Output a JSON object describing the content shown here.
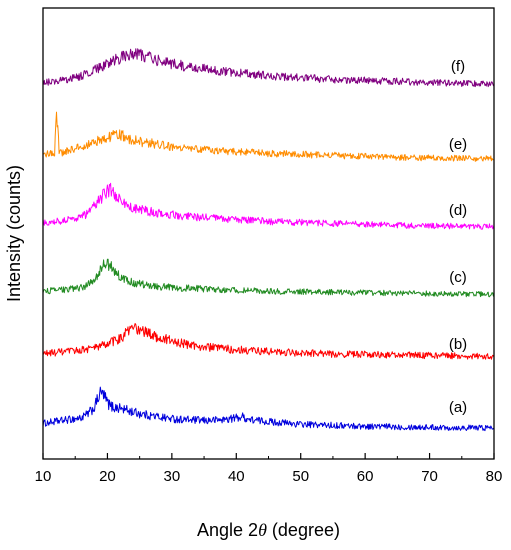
{
  "chart_data": {
    "type": "line",
    "xlabel_prefix": "Angle 2",
    "xlabel_symbol": "θ",
    "xlabel_suffix": " (degree)",
    "ylabel": "Intensity (counts)",
    "xlim": [
      10,
      80
    ],
    "x_ticks": [
      "10",
      "20",
      "30",
      "40",
      "50",
      "60",
      "70",
      "80"
    ],
    "y_ticks_shown": false,
    "grid": false,
    "series": [
      {
        "name": "(a)",
        "color": "#0000dd",
        "baseline": 0.5,
        "x": [
          10,
          12,
          14,
          16,
          17,
          18,
          18.5,
          19,
          19.5,
          20,
          20.5,
          21,
          22,
          23,
          24,
          26,
          28,
          30,
          32,
          35,
          38,
          40,
          41,
          42,
          45,
          50,
          55,
          60,
          65,
          70,
          75,
          80
        ],
        "y": [
          0.9,
          1.1,
          1.3,
          1.5,
          1.9,
          2.6,
          3.5,
          4.2,
          3.8,
          3.1,
          2.7,
          2.6,
          2.5,
          2.3,
          2.1,
          1.8,
          1.6,
          1.4,
          1.3,
          1.2,
          1.3,
          1.5,
          1.6,
          1.3,
          1.1,
          0.8,
          0.7,
          0.6,
          0.55,
          0.5,
          0.45,
          0.45
        ]
      },
      {
        "name": "(b)",
        "color": "#ff0000",
        "baseline": 0.5,
        "x": [
          10,
          12,
          14,
          16,
          18,
          20,
          22,
          23,
          24,
          25,
          26,
          28,
          30,
          32,
          35,
          40,
          45,
          50,
          55,
          60,
          65,
          70,
          75,
          80
        ],
        "y": [
          1.0,
          1.1,
          1.2,
          1.4,
          1.6,
          2.0,
          2.6,
          3.2,
          3.6,
          3.5,
          3.2,
          2.7,
          2.3,
          2.0,
          1.7,
          1.4,
          1.2,
          1.05,
          0.95,
          0.9,
          0.85,
          0.8,
          0.75,
          0.7
        ]
      },
      {
        "name": "(c)",
        "color": "#228b22",
        "baseline": 0.3,
        "x": [
          10,
          12,
          14,
          16,
          17,
          18,
          19,
          19.5,
          20,
          20.5,
          21,
          22,
          23,
          24,
          26,
          28,
          30,
          35,
          40,
          45,
          50,
          55,
          60,
          65,
          70,
          75,
          80
        ],
        "y": [
          0.5,
          0.6,
          0.7,
          0.9,
          1.2,
          1.8,
          2.8,
          3.3,
          3.4,
          3.2,
          2.7,
          2.0,
          1.6,
          1.4,
          1.2,
          1.0,
          0.9,
          0.75,
          0.6,
          0.5,
          0.45,
          0.4,
          0.35,
          0.3,
          0.25,
          0.2,
          0.2
        ]
      },
      {
        "name": "(d)",
        "color": "#ff00ff",
        "baseline": 0.3,
        "x": [
          10,
          12,
          14,
          16,
          17,
          18,
          19,
          20,
          20.5,
          21,
          22,
          23,
          24,
          26,
          28,
          30,
          35,
          40,
          45,
          50,
          55,
          60,
          65,
          70,
          75,
          80
        ],
        "y": [
          0.8,
          0.9,
          1.1,
          1.4,
          1.8,
          2.5,
          3.4,
          4.1,
          4.2,
          3.9,
          3.1,
          2.6,
          2.3,
          2.0,
          1.8,
          1.6,
          1.3,
          1.1,
          0.9,
          0.8,
          0.7,
          0.6,
          0.5,
          0.45,
          0.4,
          0.35
        ]
      },
      {
        "name": "(e)",
        "color": "#ff8c00",
        "baseline": 0.3,
        "x": [
          10,
          11,
          11.8,
          12.1,
          12.5,
          13,
          14,
          16,
          18,
          20,
          21,
          22,
          23,
          24,
          26,
          28,
          30,
          35,
          40,
          45,
          50,
          55,
          60,
          65,
          70,
          75,
          80
        ],
        "y": [
          0.9,
          1.0,
          1.1,
          5.6,
          1.2,
          1.1,
          1.3,
          1.7,
          2.2,
          2.7,
          2.9,
          2.9,
          2.7,
          2.4,
          2.1,
          2.0,
          1.7,
          1.4,
          1.2,
          1.0,
          0.9,
          0.8,
          0.7,
          0.6,
          0.55,
          0.5,
          0.45
        ]
      },
      {
        "name": "(f)",
        "color": "#800080",
        "baseline": 0.5,
        "x": [
          10,
          12,
          14,
          16,
          18,
          20,
          22,
          23,
          24,
          25,
          26,
          28,
          30,
          32,
          35,
          40,
          45,
          50,
          55,
          60,
          65,
          70,
          75,
          80
        ],
        "y": [
          0.8,
          0.9,
          1.1,
          1.5,
          2.1,
          2.8,
          3.4,
          3.7,
          3.8,
          3.7,
          3.5,
          3.1,
          2.8,
          2.5,
          2.2,
          1.8,
          1.5,
          1.3,
          1.1,
          1.0,
          0.9,
          0.8,
          0.7,
          0.6
        ]
      }
    ]
  }
}
